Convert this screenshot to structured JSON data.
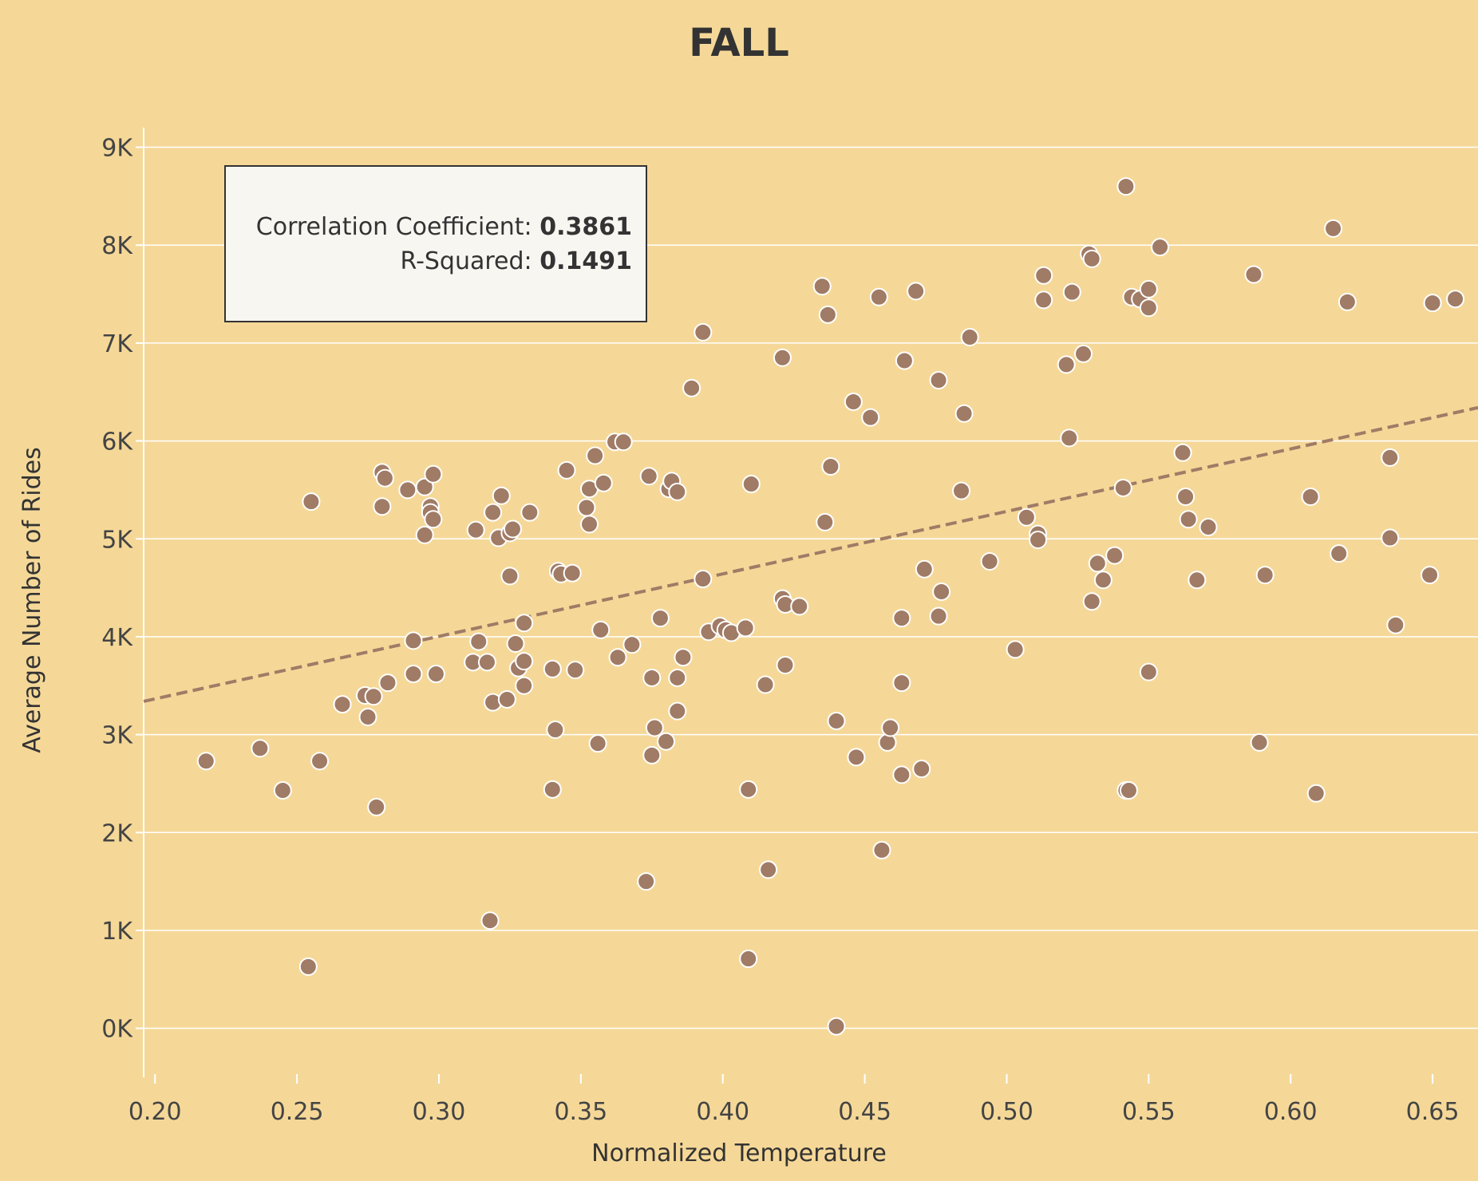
{
  "colors": {
    "background": "#f5d898",
    "point_fill": "#a07b66",
    "point_stroke": "#ffffff",
    "trend_line": "#a07b66",
    "grid": "#ffffff"
  },
  "stats": {
    "corr_label": "Correlation Coefficient:",
    "corr_value": "0.3861",
    "r2_label": "R-Squared:",
    "r2_value": "0.1491"
  },
  "chart_data": {
    "type": "scatter",
    "title": "FALL",
    "xlabel": "Normalized Temperature",
    "ylabel": "Average Number of Rides",
    "xlim": [
      0.196,
      0.666
    ],
    "ylim": [
      -500,
      9200
    ],
    "x_ticks": [
      "0.20",
      "0.25",
      "0.30",
      "0.35",
      "0.40",
      "0.45",
      "0.50",
      "0.55",
      "0.60",
      "0.65"
    ],
    "x_tick_values": [
      0.2,
      0.25,
      0.3,
      0.35,
      0.4,
      0.45,
      0.5,
      0.55,
      0.6,
      0.65
    ],
    "y_ticks": [
      "0K",
      "1K",
      "2K",
      "3K",
      "4K",
      "5K",
      "6K",
      "7K",
      "8K",
      "9K"
    ],
    "y_tick_values": [
      0,
      1000,
      2000,
      3000,
      4000,
      5000,
      6000,
      7000,
      8000,
      9000
    ],
    "grid": "horizontal",
    "trend_line": {
      "style": "dashed",
      "start": [
        0.196,
        3340
      ],
      "end": [
        0.666,
        6340
      ]
    },
    "points": [
      [
        0.218,
        2730
      ],
      [
        0.237,
        2860
      ],
      [
        0.245,
        2430
      ],
      [
        0.254,
        630
      ],
      [
        0.255,
        5380
      ],
      [
        0.258,
        2730
      ],
      [
        0.266,
        3310
      ],
      [
        0.274,
        3400
      ],
      [
        0.275,
        3180
      ],
      [
        0.277,
        3390
      ],
      [
        0.278,
        2260
      ],
      [
        0.28,
        5680
      ],
      [
        0.28,
        5330
      ],
      [
        0.281,
        5620
      ],
      [
        0.282,
        3530
      ],
      [
        0.289,
        5500
      ],
      [
        0.291,
        3620
      ],
      [
        0.291,
        3960
      ],
      [
        0.295,
        5530
      ],
      [
        0.295,
        5040
      ],
      [
        0.297,
        5330
      ],
      [
        0.297,
        5270
      ],
      [
        0.298,
        5200
      ],
      [
        0.298,
        5660
      ],
      [
        0.299,
        3620
      ],
      [
        0.312,
        3740
      ],
      [
        0.313,
        5090
      ],
      [
        0.314,
        3950
      ],
      [
        0.317,
        3740
      ],
      [
        0.318,
        1100
      ],
      [
        0.319,
        3330
      ],
      [
        0.319,
        5270
      ],
      [
        0.321,
        5010
      ],
      [
        0.322,
        5440
      ],
      [
        0.324,
        3360
      ],
      [
        0.325,
        5060
      ],
      [
        0.325,
        4620
      ],
      [
        0.326,
        5100
      ],
      [
        0.327,
        3930
      ],
      [
        0.328,
        3680
      ],
      [
        0.33,
        3500
      ],
      [
        0.33,
        3750
      ],
      [
        0.33,
        4140
      ],
      [
        0.332,
        5270
      ],
      [
        0.34,
        3670
      ],
      [
        0.34,
        2440
      ],
      [
        0.341,
        3050
      ],
      [
        0.342,
        4670
      ],
      [
        0.343,
        4640
      ],
      [
        0.345,
        5700
      ],
      [
        0.347,
        4650
      ],
      [
        0.348,
        3660
      ],
      [
        0.352,
        5320
      ],
      [
        0.353,
        5510
      ],
      [
        0.353,
        5150
      ],
      [
        0.355,
        5850
      ],
      [
        0.356,
        2910
      ],
      [
        0.357,
        4070
      ],
      [
        0.358,
        5570
      ],
      [
        0.362,
        5990
      ],
      [
        0.363,
        3790
      ],
      [
        0.365,
        5990
      ],
      [
        0.368,
        3920
      ],
      [
        0.373,
        1500
      ],
      [
        0.374,
        5640
      ],
      [
        0.375,
        3580
      ],
      [
        0.375,
        2790
      ],
      [
        0.376,
        3070
      ],
      [
        0.378,
        4190
      ],
      [
        0.38,
        2930
      ],
      [
        0.381,
        5510
      ],
      [
        0.382,
        5590
      ],
      [
        0.384,
        5480
      ],
      [
        0.384,
        3580
      ],
      [
        0.384,
        3240
      ],
      [
        0.386,
        3790
      ],
      [
        0.389,
        6540
      ],
      [
        0.393,
        7110
      ],
      [
        0.393,
        4590
      ],
      [
        0.395,
        4050
      ],
      [
        0.399,
        4110
      ],
      [
        0.401,
        4070
      ],
      [
        0.403,
        4040
      ],
      [
        0.408,
        4090
      ],
      [
        0.409,
        710
      ],
      [
        0.409,
        2440
      ],
      [
        0.41,
        5560
      ],
      [
        0.415,
        3510
      ],
      [
        0.416,
        1620
      ],
      [
        0.421,
        6850
      ],
      [
        0.421,
        4390
      ],
      [
        0.422,
        4330
      ],
      [
        0.422,
        3710
      ],
      [
        0.427,
        4310
      ],
      [
        0.435,
        7580
      ],
      [
        0.436,
        5170
      ],
      [
        0.437,
        7290
      ],
      [
        0.438,
        5740
      ],
      [
        0.44,
        3140
      ],
      [
        0.44,
        20
      ],
      [
        0.446,
        6400
      ],
      [
        0.447,
        2770
      ],
      [
        0.452,
        6240
      ],
      [
        0.455,
        7470
      ],
      [
        0.456,
        1820
      ],
      [
        0.458,
        2920
      ],
      [
        0.459,
        3070
      ],
      [
        0.463,
        2590
      ],
      [
        0.463,
        4190
      ],
      [
        0.463,
        3530
      ],
      [
        0.464,
        6820
      ],
      [
        0.468,
        7530
      ],
      [
        0.47,
        2650
      ],
      [
        0.471,
        4690
      ],
      [
        0.476,
        6620
      ],
      [
        0.476,
        4210
      ],
      [
        0.477,
        4460
      ],
      [
        0.484,
        5490
      ],
      [
        0.485,
        6280
      ],
      [
        0.487,
        7060
      ],
      [
        0.494,
        4770
      ],
      [
        0.503,
        3870
      ],
      [
        0.507,
        5220
      ],
      [
        0.511,
        5050
      ],
      [
        0.511,
        4990
      ],
      [
        0.513,
        7690
      ],
      [
        0.513,
        7440
      ],
      [
        0.521,
        6780
      ],
      [
        0.522,
        6030
      ],
      [
        0.523,
        7520
      ],
      [
        0.527,
        6890
      ],
      [
        0.529,
        7910
      ],
      [
        0.53,
        7860
      ],
      [
        0.53,
        4360
      ],
      [
        0.532,
        4750
      ],
      [
        0.534,
        4580
      ],
      [
        0.538,
        4830
      ],
      [
        0.541,
        5520
      ],
      [
        0.542,
        8600
      ],
      [
        0.542,
        2430
      ],
      [
        0.543,
        2430
      ],
      [
        0.544,
        7470
      ],
      [
        0.547,
        7450
      ],
      [
        0.55,
        7550
      ],
      [
        0.55,
        7360
      ],
      [
        0.55,
        3640
      ],
      [
        0.554,
        7980
      ],
      [
        0.562,
        5880
      ],
      [
        0.563,
        5430
      ],
      [
        0.564,
        5200
      ],
      [
        0.567,
        4580
      ],
      [
        0.571,
        5120
      ],
      [
        0.587,
        7700
      ],
      [
        0.589,
        2920
      ],
      [
        0.591,
        4630
      ],
      [
        0.607,
        5430
      ],
      [
        0.609,
        2400
      ],
      [
        0.615,
        8170
      ],
      [
        0.617,
        4850
      ],
      [
        0.62,
        7420
      ],
      [
        0.635,
        5010
      ],
      [
        0.635,
        5830
      ],
      [
        0.637,
        4120
      ],
      [
        0.649,
        4630
      ],
      [
        0.65,
        7410
      ],
      [
        0.658,
        7450
      ]
    ]
  }
}
